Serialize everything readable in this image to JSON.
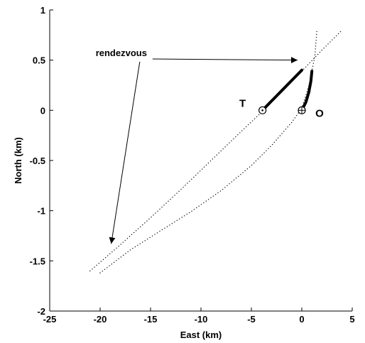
{
  "chart_data": {
    "type": "line",
    "title": "",
    "xlabel": "East (km)",
    "ylabel": "North (km)",
    "xlim": [
      -25,
      5
    ],
    "ylim": [
      -2,
      1
    ],
    "xticks": [
      -25,
      -20,
      -15,
      -10,
      -5,
      0,
      5
    ],
    "yticks": [
      -2,
      -1.5,
      -1,
      -0.5,
      0,
      0.5,
      1
    ],
    "xtick_labels": [
      "-25",
      "-20",
      "-15",
      "-10",
      "-5",
      "0",
      "5"
    ],
    "ytick_labels": [
      "-2",
      "-1.5",
      "-1",
      "-0.5",
      "0",
      "0.5",
      "1"
    ],
    "grid": false,
    "series": [
      {
        "style": "dotted",
        "x": [
          -21,
          -18,
          -15,
          -12,
          -9,
          -6,
          -4,
          -2,
          0,
          2,
          4
        ],
        "y": [
          -1.6,
          -1.34,
          -1.07,
          -0.79,
          -0.5,
          -0.21,
          -0.02,
          0.18,
          0.39,
          0.6,
          0.8
        ]
      },
      {
        "style": "dotted",
        "x": [
          -20,
          -17,
          -14,
          -11,
          -8,
          -5,
          -3,
          -1,
          0,
          0.8,
          1.3,
          1.5
        ],
        "y": [
          -1.62,
          -1.39,
          -1.2,
          -1.01,
          -0.8,
          -0.55,
          -0.35,
          -0.12,
          0.02,
          0.28,
          0.55,
          0.8
        ]
      },
      {
        "style": "thick",
        "x": [
          -3.9,
          0
        ],
        "y": [
          0,
          0.4
        ]
      },
      {
        "style": "thick",
        "x": [
          0,
          0.4,
          0.7,
          0.9,
          1.0
        ],
        "y": [
          0,
          0.08,
          0.18,
          0.29,
          0.39
        ]
      }
    ],
    "markers": [
      {
        "label": "T",
        "x": -3.9,
        "y": 0,
        "symbol": "circle-dot"
      },
      {
        "label": "O",
        "x": 0,
        "y": 0,
        "symbol": "circle-plus"
      }
    ],
    "annotations": [
      {
        "text": "rendezvous",
        "text_x": -17.9,
        "text_y": 0.54,
        "arrows": [
          {
            "x": 0,
            "y": 0.5
          },
          {
            "x": -18.9,
            "y": -1.33
          }
        ]
      }
    ]
  }
}
